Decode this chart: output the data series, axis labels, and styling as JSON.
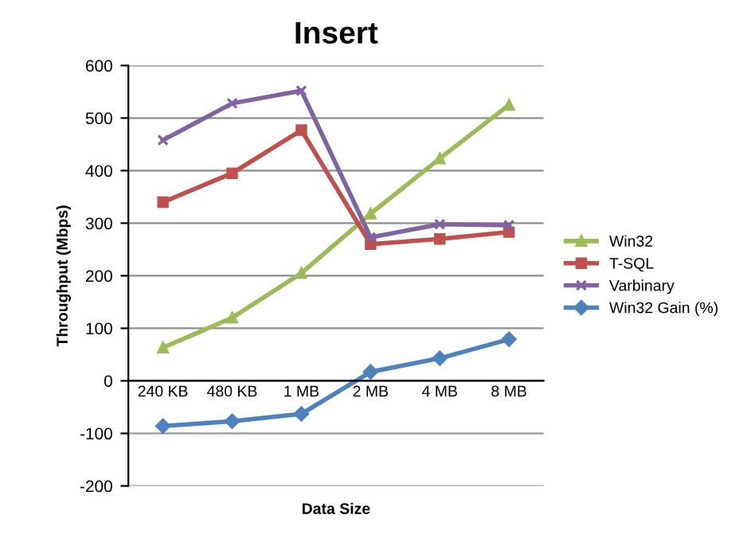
{
  "chart_data": {
    "type": "line",
    "title": "Insert",
    "xlabel": "Data Size",
    "ylabel": "Throughput (Mbps)",
    "categories": [
      "240 KB",
      "480 KB",
      "1 MB",
      "2 MB",
      "4 MB",
      "8 MB"
    ],
    "series": [
      {
        "name": "Win32",
        "color": "#9bbb59",
        "marker": "triangle",
        "values": [
          63,
          120,
          205,
          318,
          423,
          525
        ]
      },
      {
        "name": "T-SQL",
        "color": "#c0504d",
        "marker": "square",
        "values": [
          340,
          395,
          477,
          260,
          270,
          283
        ]
      },
      {
        "name": "Varbinary",
        "color": "#8064a2",
        "marker": "cross",
        "values": [
          458,
          528,
          552,
          273,
          298,
          296
        ]
      },
      {
        "name": "Win32 Gain (%)",
        "color": "#4f81bd",
        "marker": "diamond",
        "values": [
          -86,
          -77,
          -63,
          17,
          43,
          79
        ]
      }
    ],
    "ylim": [
      -200,
      600
    ],
    "yticks": [
      -200,
      -100,
      0,
      100,
      200,
      300,
      400,
      500,
      600
    ],
    "grid": "y",
    "legend": "right",
    "line_style": "solid"
  }
}
